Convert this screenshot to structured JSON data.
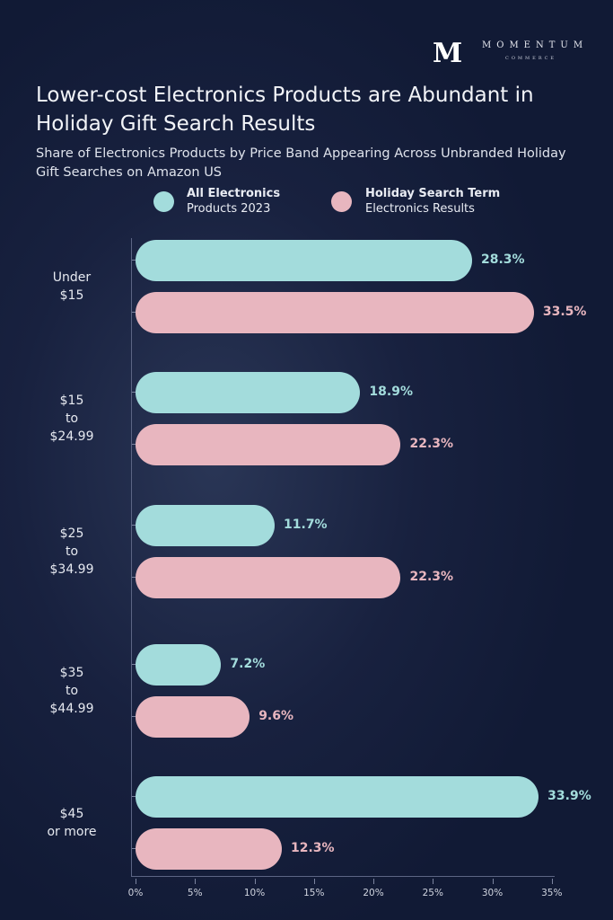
{
  "logo": {
    "mark": "M",
    "name": "MOMENTUM",
    "sub": "COMMERCE"
  },
  "colors": {
    "all": "#a3dcdc",
    "holiday": "#e8b6bf",
    "axis": "#7c84a0"
  },
  "chart_data": {
    "type": "bar",
    "orientation": "horizontal",
    "title": "Lower-cost Electronics Products are Abundant in Holiday Gift Search Results",
    "subtitle": "Share of Electronics Products by Price Band Appearing Across Unbranded Holiday Gift Searches on Amazon US",
    "categories": [
      [
        "Under",
        "$15"
      ],
      [
        "$15",
        "to",
        "$24.99"
      ],
      [
        "$25",
        "to",
        "$34.99"
      ],
      [
        "$35",
        "to",
        "$44.99"
      ],
      [
        "$45",
        "or more"
      ]
    ],
    "series": [
      {
        "name": "All Electronics Products 2023",
        "name_bold": "All Electronics",
        "name_rest": "Products 2023",
        "values": [
          28.3,
          18.9,
          11.7,
          7.2,
          33.9
        ],
        "labels": [
          "28.3%",
          "18.9%",
          "11.7%",
          "7.2%",
          "33.9%"
        ]
      },
      {
        "name": "Holiday Search Term Electronics Results",
        "name_bold": "Holiday Search Term",
        "name_rest": "Electronics Results",
        "values": [
          33.5,
          22.3,
          22.3,
          9.6,
          12.3
        ],
        "labels": [
          "33.5%",
          "22.3%",
          "22.3%",
          "9.6%",
          "12.3%"
        ]
      }
    ],
    "xlim": [
      0,
      35
    ],
    "xticks": [
      "0%",
      "5%",
      "10%",
      "15%",
      "20%",
      "25%",
      "30%",
      "35%"
    ],
    "grid": false,
    "legend": "top"
  }
}
